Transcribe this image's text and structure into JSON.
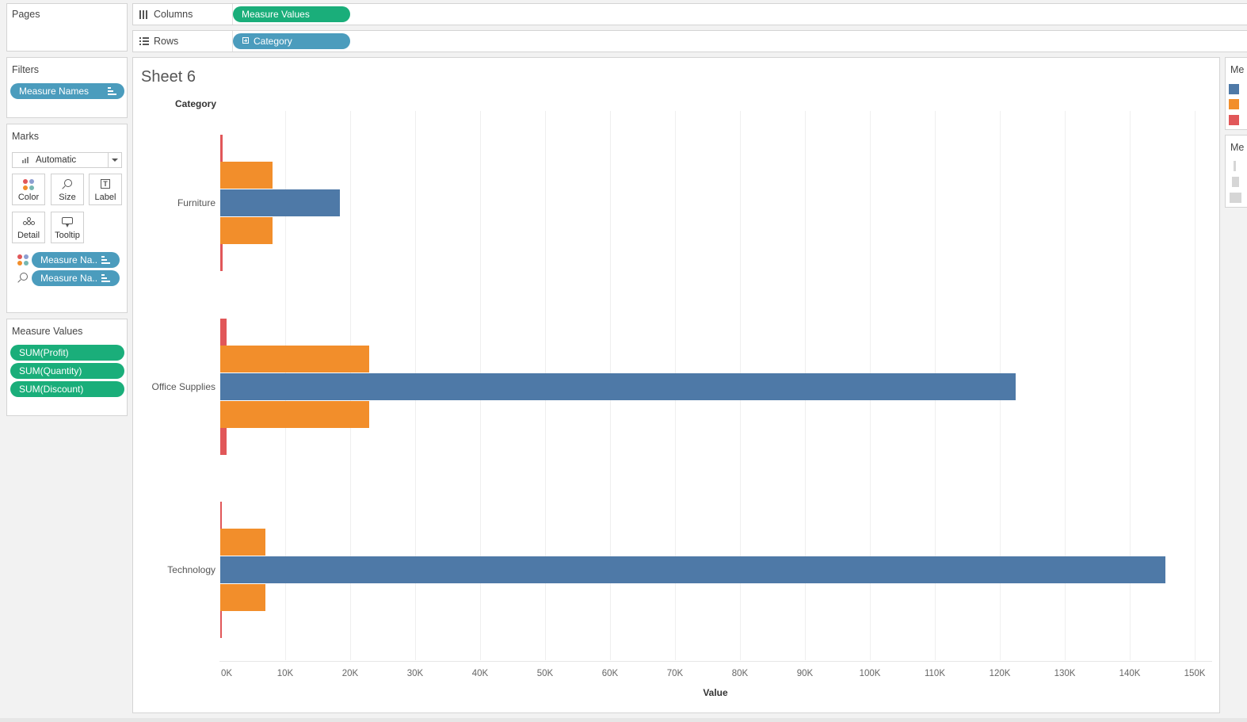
{
  "pages_card": {
    "title": "Pages"
  },
  "columns_shelf": {
    "label": "Columns",
    "pill": "Measure Values"
  },
  "rows_shelf": {
    "label": "Rows",
    "pill": "Category"
  },
  "filters_card": {
    "title": "Filters",
    "pill": "Measure Names"
  },
  "marks_card": {
    "title": "Marks",
    "mark_type": "Automatic",
    "buttons": [
      "Color",
      "Size",
      "Label",
      "Detail",
      "Tooltip"
    ],
    "pills": [
      "Measure Na..",
      "Measure Na.."
    ]
  },
  "measure_values_card": {
    "title": "Measure Values",
    "pills": [
      "SUM(Profit)",
      "SUM(Quantity)",
      "SUM(Discount)"
    ]
  },
  "legend": {
    "title1": "Me",
    "title2": "Me"
  },
  "colors": {
    "profit": "#4e79a7",
    "quantity": "#f28e2b",
    "discount": "#e15759",
    "pill_blue": "#4b9cbd",
    "pill_green": "#1aae7a"
  },
  "sheet": {
    "title": "Sheet 6",
    "row_header": "Category"
  },
  "chart_data": {
    "type": "bar",
    "orientation": "horizontal",
    "categories": [
      "Furniture",
      "Office Supplies",
      "Technology"
    ],
    "series": [
      {
        "key": "profit",
        "values": [
          18451,
          122491,
          145455
        ]
      },
      {
        "key": "quantity",
        "values": [
          8028,
          22906,
          6939
        ]
      },
      {
        "key": "discount",
        "values": [
          369,
          947,
          244
        ]
      }
    ],
    "xlabel": "Value",
    "xlim": [
      0,
      150000
    ],
    "ticks": [
      0,
      10000,
      20000,
      30000,
      40000,
      50000,
      60000,
      70000,
      80000,
      90000,
      100000,
      110000,
      120000,
      130000,
      140000,
      150000
    ],
    "tick_labels": [
      "0K",
      "10K",
      "20K",
      "30K",
      "40K",
      "50K",
      "60K",
      "70K",
      "80K",
      "90K",
      "100K",
      "110K",
      "120K",
      "130K",
      "140K",
      "150K"
    ],
    "grid": true
  }
}
